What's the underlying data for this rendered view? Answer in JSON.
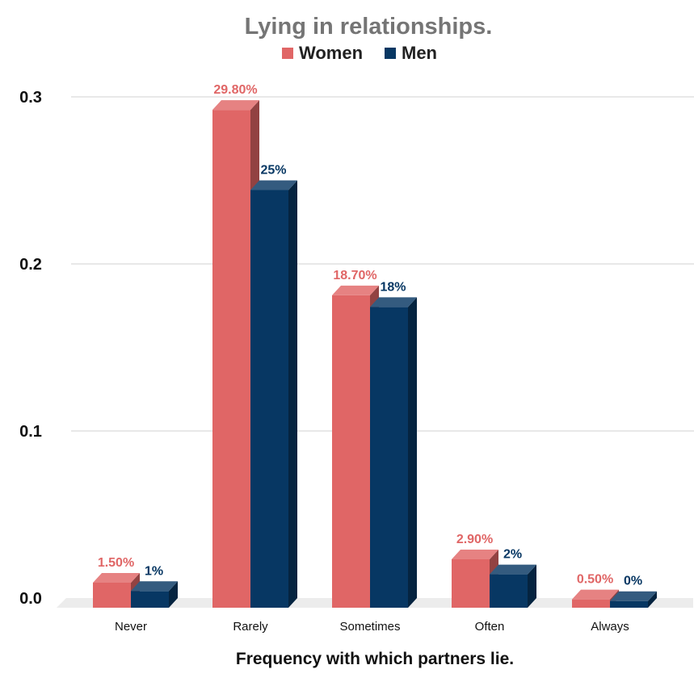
{
  "chart_data": {
    "type": "bar",
    "title": "Lying in relationships.",
    "xlabel": "Frequency with which partners lie.",
    "ylabel": "",
    "categories": [
      "Never",
      "Rarely",
      "Sometimes",
      "Often",
      "Always"
    ],
    "ylim": [
      0,
      0.3
    ],
    "yticks": [
      "0.0",
      "0.1",
      "0.2",
      "0.3"
    ],
    "ytick_values": [
      0,
      0.1,
      0.2,
      0.3
    ],
    "grid": true,
    "legend_position": "top-center",
    "series": [
      {
        "name": "Women",
        "color": "#e06666",
        "values": [
          0.015,
          0.298,
          0.187,
          0.029,
          0.005
        ],
        "labels": [
          "1.50%",
          "29.80%",
          "18.70%",
          "2.90%",
          "0.50%"
        ]
      },
      {
        "name": "Men",
        "color": "#073763",
        "values": [
          0.01,
          0.25,
          0.18,
          0.02,
          0.004
        ],
        "labels": [
          "1%",
          "25%",
          "18%",
          "2%",
          "0%"
        ]
      }
    ]
  }
}
